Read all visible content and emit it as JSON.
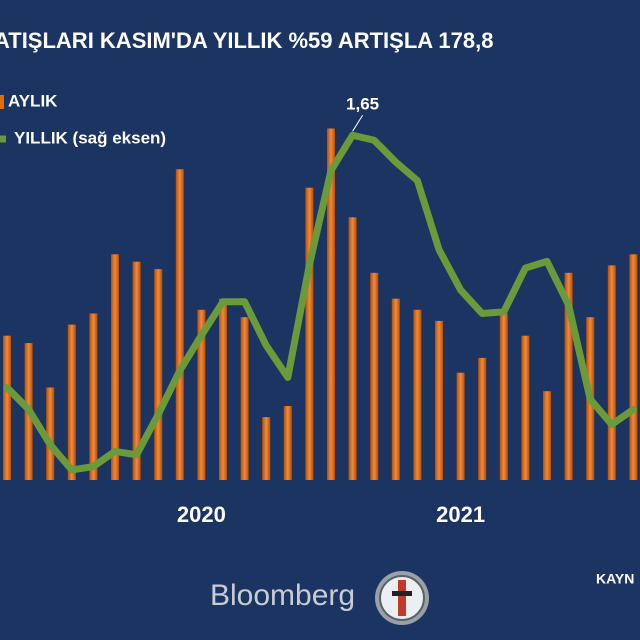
{
  "chart_data": {
    "type": "bar+line",
    "title": "ATIŞLARI KASIM'DA YILLIK %59 ARTIŞLA 178,8",
    "categories": [
      null,
      null,
      null,
      null,
      null,
      null,
      null,
      null,
      null,
      "2020",
      null,
      null,
      null,
      null,
      null,
      null,
      null,
      null,
      null,
      null,
      null,
      "2021",
      null,
      null,
      null,
      null,
      null,
      null,
      null,
      null
    ],
    "series": [
      {
        "name": "AYLIK",
        "color": "#e46c0a",
        "type": "bar",
        "values": [
          3.9,
          3.7,
          2.5,
          4.2,
          4.5,
          6.1,
          5.9,
          5.7,
          8.4,
          4.6,
          4.9,
          4.4,
          1.7,
          2.0,
          7.9,
          9.5,
          7.1,
          5.6,
          4.9,
          4.6,
          4.3,
          2.9,
          3.3,
          4.5,
          3.9,
          2.4,
          5.6,
          4.4,
          5.8,
          6.1
        ]
      },
      {
        "name": "YILLIK (sağ eksen)",
        "color": "#6a9a3a",
        "type": "line",
        "axis": "y2",
        "values": [
          0.15,
          0.02,
          -0.19,
          -0.34,
          -0.32,
          -0.23,
          -0.25,
          -0.01,
          0.25,
          0.46,
          0.66,
          0.66,
          0.4,
          0.21,
          0.88,
          1.44,
          1.65,
          1.62,
          1.49,
          1.38,
          0.97,
          0.73,
          0.59,
          0.6,
          0.86,
          0.9,
          0.64,
          0.08,
          -0.07,
          0.02
        ],
        "value_labels": [
          null,
          null,
          null,
          null,
          null,
          null,
          null,
          null,
          null,
          null,
          null,
          null,
          null,
          null,
          null,
          null,
          "1,65",
          null,
          null,
          null,
          null,
          null,
          null,
          null,
          null,
          null,
          null,
          null,
          null,
          null
        ]
      }
    ],
    "ylim": [
      0,
      10
    ],
    "y2lim": [
      -0.4,
      1.8
    ],
    "grid": false,
    "footer": {
      "brand": "Bloomberg",
      "source": "KAYN"
    }
  }
}
